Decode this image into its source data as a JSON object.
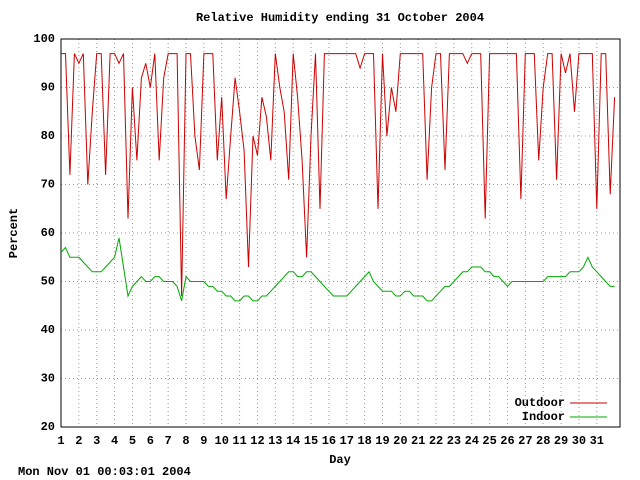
{
  "chart_data": {
    "type": "line",
    "title": "Relative Humidity ending 31 October 2004",
    "x_label": "Day",
    "y_label": "Percent",
    "footer": "Mon Nov 01 00:03:01 2004",
    "xlim": [
      1,
      32.3
    ],
    "ylim": [
      20,
      100
    ],
    "xticks": [
      1,
      2,
      3,
      4,
      5,
      6,
      7,
      8,
      9,
      10,
      11,
      12,
      13,
      14,
      15,
      16,
      17,
      18,
      19,
      20,
      21,
      22,
      23,
      24,
      25,
      26,
      27,
      28,
      29,
      30,
      31
    ],
    "yticks": [
      20,
      30,
      40,
      50,
      60,
      70,
      80,
      90,
      100
    ],
    "grid": true,
    "legend": "lower right",
    "x": [
      1,
      1.25,
      1.5,
      1.75,
      2,
      2.25,
      2.5,
      2.75,
      3,
      3.25,
      3.5,
      3.75,
      4,
      4.25,
      4.5,
      4.75,
      5,
      5.25,
      5.5,
      5.75,
      6,
      6.25,
      6.5,
      6.75,
      7,
      7.25,
      7.5,
      7.75,
      8,
      8.25,
      8.5,
      8.75,
      9,
      9.25,
      9.5,
      9.75,
      10,
      10.25,
      10.5,
      10.75,
      11,
      11.25,
      11.5,
      11.75,
      12,
      12.25,
      12.5,
      12.75,
      13,
      13.25,
      13.5,
      13.75,
      14,
      14.25,
      14.5,
      14.75,
      15,
      15.25,
      15.5,
      15.75,
      16,
      16.25,
      16.5,
      16.75,
      17,
      17.25,
      17.5,
      17.75,
      18,
      18.25,
      18.5,
      18.75,
      19,
      19.25,
      19.5,
      19.75,
      20,
      20.25,
      20.5,
      20.75,
      21,
      21.25,
      21.5,
      21.75,
      22,
      22.25,
      22.5,
      22.75,
      23,
      23.25,
      23.5,
      23.75,
      24,
      24.25,
      24.5,
      24.75,
      25,
      25.25,
      25.5,
      25.75,
      26,
      26.25,
      26.5,
      26.75,
      27,
      27.25,
      27.5,
      27.75,
      28,
      28.25,
      28.5,
      28.75,
      29,
      29.25,
      29.5,
      29.75,
      30,
      30.25,
      30.5,
      30.75,
      31,
      31.25,
      31.5,
      31.75,
      32
    ],
    "series": [
      {
        "name": "Outdoor",
        "color": "#cc0000",
        "values": [
          97,
          97,
          72,
          97,
          95,
          97,
          70,
          85,
          97,
          97,
          72,
          97,
          97,
          95,
          97,
          63,
          90,
          75,
          92,
          95,
          90,
          97,
          75,
          92,
          97,
          97,
          97,
          47,
          97,
          97,
          80,
          73,
          97,
          97,
          97,
          75,
          88,
          67,
          80,
          92,
          85,
          77,
          53,
          80,
          76,
          88,
          84,
          75,
          97,
          90,
          85,
          71,
          97,
          88,
          75,
          55,
          80,
          97,
          65,
          97,
          97,
          97,
          97,
          97,
          97,
          97,
          97,
          94,
          97,
          97,
          97,
          65,
          97,
          80,
          90,
          85,
          97,
          97,
          97,
          97,
          97,
          97,
          71,
          90,
          97,
          97,
          73,
          97,
          97,
          97,
          97,
          95,
          97,
          97,
          97,
          63,
          97,
          97,
          97,
          97,
          97,
          97,
          97,
          67,
          97,
          97,
          97,
          75,
          90,
          97,
          97,
          71,
          97,
          93,
          97,
          85,
          97,
          97,
          97,
          97,
          65,
          97,
          97,
          68,
          88
        ]
      },
      {
        "name": "Indoor",
        "color": "#00aa00",
        "values": [
          56,
          57,
          55,
          55,
          55,
          54,
          53,
          52,
          52,
          52,
          53,
          54,
          55,
          59,
          53,
          47,
          49,
          50,
          51,
          50,
          50,
          51,
          51,
          50,
          50,
          50,
          49,
          46,
          51,
          50,
          50,
          50,
          50,
          49,
          49,
          48,
          48,
          47,
          47,
          46,
          46,
          47,
          47,
          46,
          46,
          47,
          47,
          48,
          49,
          50,
          51,
          52,
          52,
          51,
          51,
          52,
          52,
          51,
          50,
          49,
          48,
          47,
          47,
          47,
          47,
          48,
          49,
          50,
          51,
          52,
          50,
          49,
          48,
          48,
          48,
          47,
          47,
          48,
          48,
          47,
          47,
          47,
          46,
          46,
          47,
          48,
          49,
          49,
          50,
          51,
          52,
          52,
          53,
          53,
          53,
          52,
          52,
          51,
          51,
          50,
          49,
          50,
          50,
          50,
          50,
          50,
          50,
          50,
          50,
          51,
          51,
          51,
          51,
          51,
          52,
          52,
          52,
          53,
          55,
          53,
          52,
          51,
          50,
          49,
          49
        ]
      }
    ]
  }
}
